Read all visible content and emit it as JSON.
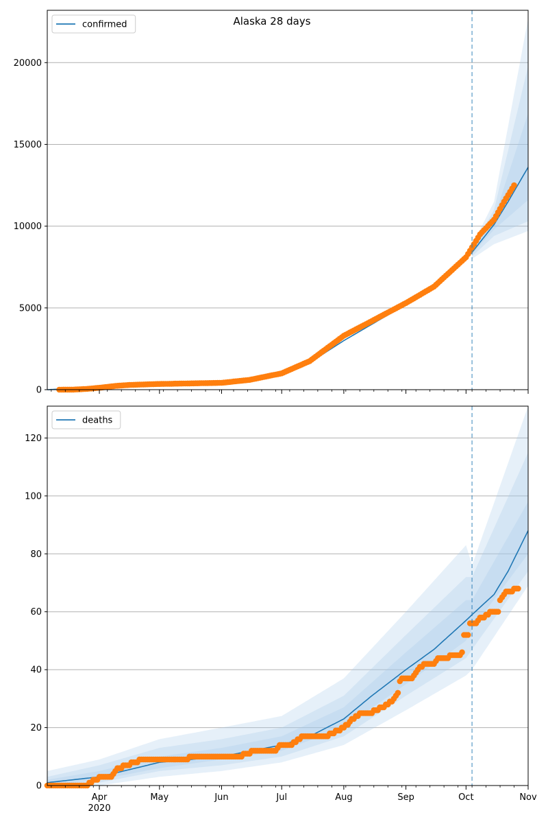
{
  "figure": {
    "title": "Alaska 28 days"
  },
  "chart_data": [
    {
      "type": "line",
      "legend": "top-left",
      "grid": "horizontal",
      "x_type": "date",
      "xlim": [
        "2020-03-06",
        "2020-11-01"
      ],
      "ylim": [
        0,
        23200
      ],
      "yticks": [
        0,
        5000,
        10000,
        15000,
        20000
      ],
      "forecast_start": "2020-10-04",
      "series": [
        {
          "name": "confirmed",
          "kind": "model-median",
          "points": [
            [
              "2020-03-06",
              0
            ],
            [
              "2020-04-01",
              150
            ],
            [
              "2020-05-01",
              340
            ],
            [
              "2020-06-01",
              450
            ],
            [
              "2020-06-15",
              600
            ],
            [
              "2020-07-01",
              1000
            ],
            [
              "2020-07-15",
              1650
            ],
            [
              "2020-08-01",
              3000
            ],
            [
              "2020-08-15",
              4000
            ],
            [
              "2020-09-01",
              5200
            ],
            [
              "2020-09-15",
              6300
            ],
            [
              "2020-10-01",
              8000
            ],
            [
              "2020-10-04",
              8400
            ],
            [
              "2020-10-15",
              10100
            ],
            [
              "2020-10-22",
              11500
            ],
            [
              "2020-11-01",
              13600
            ]
          ],
          "bands": [
            {
              "lower": [
                [
                  "2020-10-04",
                  8000
                ],
                [
                  "2020-10-15",
                  8900
                ],
                [
                  "2020-11-01",
                  9700
                ]
              ],
              "upper": [
                [
                  "2020-10-04",
                  8800
                ],
                [
                  "2020-10-15",
                  11500
                ],
                [
                  "2020-11-01",
                  22700
                ]
              ]
            },
            {
              "lower": [
                [
                  "2020-10-04",
                  8150
                ],
                [
                  "2020-10-15",
                  9400
                ],
                [
                  "2020-11-01",
                  10300
                ]
              ],
              "upper": [
                [
                  "2020-10-04",
                  8650
                ],
                [
                  "2020-10-15",
                  11000
                ],
                [
                  "2020-11-01",
                  19800
                ]
              ]
            },
            {
              "lower": [
                [
                  "2020-10-04",
                  8300
                ],
                [
                  "2020-10-15",
                  9800
                ],
                [
                  "2020-11-01",
                  11600
                ]
              ],
              "upper": [
                [
                  "2020-10-04",
                  8500
                ],
                [
                  "2020-10-15",
                  10500
                ],
                [
                  "2020-11-01",
                  16900
                ]
              ]
            }
          ]
        },
        {
          "name": "",
          "kind": "observed",
          "points": [
            [
              "2020-03-12",
              1
            ],
            [
              "2020-03-19",
              6
            ],
            [
              "2020-03-26",
              50
            ],
            [
              "2020-04-02",
              130
            ],
            [
              "2020-04-09",
              230
            ],
            [
              "2020-04-16",
              290
            ],
            [
              "2020-04-23",
              320
            ],
            [
              "2020-05-01",
              350
            ],
            [
              "2020-05-15",
              380
            ],
            [
              "2020-06-01",
              420
            ],
            [
              "2020-06-15",
              600
            ],
            [
              "2020-07-01",
              1000
            ],
            [
              "2020-07-15",
              1750
            ],
            [
              "2020-08-01",
              3300
            ],
            [
              "2020-08-15",
              4200
            ],
            [
              "2020-09-01",
              5300
            ],
            [
              "2020-09-15",
              6300
            ],
            [
              "2020-10-01",
              8100
            ],
            [
              "2020-10-08",
              9500
            ],
            [
              "2020-10-15",
              10400
            ],
            [
              "2020-10-20",
              11500
            ],
            [
              "2020-10-25",
              12500
            ]
          ]
        }
      ]
    },
    {
      "type": "line",
      "legend": "top-left",
      "grid": "horizontal",
      "x_type": "date",
      "xlim": [
        "2020-03-06",
        "2020-11-01"
      ],
      "ylim": [
        0,
        131
      ],
      "yticks": [
        0,
        20,
        40,
        60,
        80,
        100,
        120
      ],
      "xticks": [
        {
          "date": "2020-04-01",
          "label": "Apr",
          "sublabel": "2020"
        },
        {
          "date": "2020-05-01",
          "label": "May"
        },
        {
          "date": "2020-06-01",
          "label": "Jun"
        },
        {
          "date": "2020-07-01",
          "label": "Jul"
        },
        {
          "date": "2020-08-01",
          "label": "Aug"
        },
        {
          "date": "2020-09-01",
          "label": "Sep"
        },
        {
          "date": "2020-10-01",
          "label": "Oct"
        },
        {
          "date": "2020-11-01",
          "label": "Nov"
        }
      ],
      "forecast_start": "2020-10-04",
      "series": [
        {
          "name": "deaths",
          "kind": "model-median",
          "points": [
            [
              "2020-03-06",
              1
            ],
            [
              "2020-04-01",
              3
            ],
            [
              "2020-05-01",
              8
            ],
            [
              "2020-06-01",
              10
            ],
            [
              "2020-07-01",
              14
            ],
            [
              "2020-07-15",
              17
            ],
            [
              "2020-08-01",
              23
            ],
            [
              "2020-08-15",
              31
            ],
            [
              "2020-09-01",
              40
            ],
            [
              "2020-09-15",
              47
            ],
            [
              "2020-10-01",
              57
            ],
            [
              "2020-10-04",
              59
            ],
            [
              "2020-10-15",
              66
            ],
            [
              "2020-10-22",
              74
            ],
            [
              "2020-11-01",
              88
            ]
          ],
          "bands": [
            {
              "lower": [
                [
                  "2020-03-06",
                  0
                ],
                [
                  "2020-04-01",
                  0
                ],
                [
                  "2020-05-01",
                  3
                ],
                [
                  "2020-06-01",
                  5
                ],
                [
                  "2020-07-01",
                  8
                ],
                [
                  "2020-08-01",
                  14
                ],
                [
                  "2020-09-01",
                  26
                ],
                [
                  "2020-10-01",
                  38
                ],
                [
                  "2020-10-04",
                  40
                ],
                [
                  "2020-11-01",
                  69
                ]
              ],
              "upper": [
                [
                  "2020-03-06",
                  5
                ],
                [
                  "2020-04-01",
                  9
                ],
                [
                  "2020-05-01",
                  16
                ],
                [
                  "2020-06-01",
                  20
                ],
                [
                  "2020-07-01",
                  24
                ],
                [
                  "2020-08-01",
                  37
                ],
                [
                  "2020-09-01",
                  60
                ],
                [
                  "2020-10-01",
                  83
                ],
                [
                  "2020-10-04",
                  76
                ],
                [
                  "2020-11-01",
                  131
                ]
              ]
            },
            {
              "lower": [
                [
                  "2020-03-06",
                  0
                ],
                [
                  "2020-04-01",
                  1
                ],
                [
                  "2020-05-01",
                  5
                ],
                [
                  "2020-06-01",
                  7
                ],
                [
                  "2020-07-01",
                  10
                ],
                [
                  "2020-08-01",
                  17
                ],
                [
                  "2020-09-01",
                  31
                ],
                [
                  "2020-10-01",
                  44
                ],
                [
                  "2020-10-04",
                  47
                ],
                [
                  "2020-11-01",
                  74
                ]
              ],
              "upper": [
                [
                  "2020-03-06",
                  3
                ],
                [
                  "2020-04-01",
                  7
                ],
                [
                  "2020-05-01",
                  13
                ],
                [
                  "2020-06-01",
                  16
                ],
                [
                  "2020-07-01",
                  20
                ],
                [
                  "2020-08-01",
                  31
                ],
                [
                  "2020-09-01",
                  52
                ],
                [
                  "2020-10-01",
                  72
                ],
                [
                  "2020-10-04",
                  72
                ],
                [
                  "2020-11-01",
                  115
                ]
              ]
            },
            {
              "lower": [
                [
                  "2020-03-06",
                  0
                ],
                [
                  "2020-04-01",
                  2
                ],
                [
                  "2020-05-01",
                  6
                ],
                [
                  "2020-06-01",
                  9
                ],
                [
                  "2020-07-01",
                  12
                ],
                [
                  "2020-08-01",
                  20
                ],
                [
                  "2020-09-01",
                  35
                ],
                [
                  "2020-10-01",
                  50
                ],
                [
                  "2020-10-04",
                  54
                ],
                [
                  "2020-11-01",
                  80
                ]
              ],
              "upper": [
                [
                  "2020-03-06",
                  2
                ],
                [
                  "2020-04-01",
                  5
                ],
                [
                  "2020-05-01",
                  10
                ],
                [
                  "2020-06-01",
                  13
                ],
                [
                  "2020-07-01",
                  17
                ],
                [
                  "2020-08-01",
                  27
                ],
                [
                  "2020-09-01",
                  46
                ],
                [
                  "2020-10-01",
                  64
                ],
                [
                  "2020-10-04",
                  64
                ],
                [
                  "2020-11-01",
                  98
                ]
              ]
            }
          ]
        },
        {
          "name": "",
          "kind": "observed",
          "points": [
            [
              "2020-03-06",
              0
            ],
            [
              "2020-03-26",
              0
            ],
            [
              "2020-03-27",
              1
            ],
            [
              "2020-03-31",
              2
            ],
            [
              "2020-04-02",
              3
            ],
            [
              "2020-04-07",
              3
            ],
            [
              "2020-04-09",
              5
            ],
            [
              "2020-04-11",
              6
            ],
            [
              "2020-04-15",
              7
            ],
            [
              "2020-04-19",
              8
            ],
            [
              "2020-04-23",
              9
            ],
            [
              "2020-05-15",
              9
            ],
            [
              "2020-05-17",
              10
            ],
            [
              "2020-06-10",
              10
            ],
            [
              "2020-06-14",
              11
            ],
            [
              "2020-06-17",
              12
            ],
            [
              "2020-06-28",
              12
            ],
            [
              "2020-06-30",
              14
            ],
            [
              "2020-07-06",
              14
            ],
            [
              "2020-07-09",
              16
            ],
            [
              "2020-07-12",
              17
            ],
            [
              "2020-07-23",
              17
            ],
            [
              "2020-07-26",
              18
            ],
            [
              "2020-07-30",
              19
            ],
            [
              "2020-08-01",
              20
            ],
            [
              "2020-08-04",
              22
            ],
            [
              "2020-08-07",
              24
            ],
            [
              "2020-08-10",
              25
            ],
            [
              "2020-08-15",
              25
            ],
            [
              "2020-08-17",
              26
            ],
            [
              "2020-08-20",
              27
            ],
            [
              "2020-08-23",
              28
            ],
            [
              "2020-08-26",
              30
            ],
            [
              "2020-08-28",
              32
            ],
            [
              "2020-08-29",
              36
            ],
            [
              "2020-08-31",
              37
            ],
            [
              "2020-09-04",
              37
            ],
            [
              "2020-09-07",
              40
            ],
            [
              "2020-09-10",
              42
            ],
            [
              "2020-09-15",
              42
            ],
            [
              "2020-09-17",
              44
            ],
            [
              "2020-09-22",
              44
            ],
            [
              "2020-09-24",
              45
            ],
            [
              "2020-09-28",
              45
            ],
            [
              "2020-09-29",
              46
            ],
            [
              "2020-09-30",
              52
            ],
            [
              "2020-10-02",
              52
            ],
            [
              "2020-10-03",
              56
            ],
            [
              "2020-10-06",
              56
            ],
            [
              "2020-10-08",
              58
            ],
            [
              "2020-10-10",
              58
            ],
            [
              "2020-10-12",
              59
            ],
            [
              "2020-10-13",
              60
            ],
            [
              "2020-10-17",
              60
            ],
            [
              "2020-10-18",
              64
            ],
            [
              "2020-10-20",
              66
            ],
            [
              "2020-10-22",
              67
            ],
            [
              "2020-10-24",
              67
            ],
            [
              "2020-10-25",
              68
            ],
            [
              "2020-10-27",
              68
            ]
          ]
        }
      ]
    }
  ],
  "colors": {
    "median": "#1f77b4",
    "observed": "#ff7f0e",
    "band": "#a6c8e8",
    "grid": "#b0b0b0"
  }
}
